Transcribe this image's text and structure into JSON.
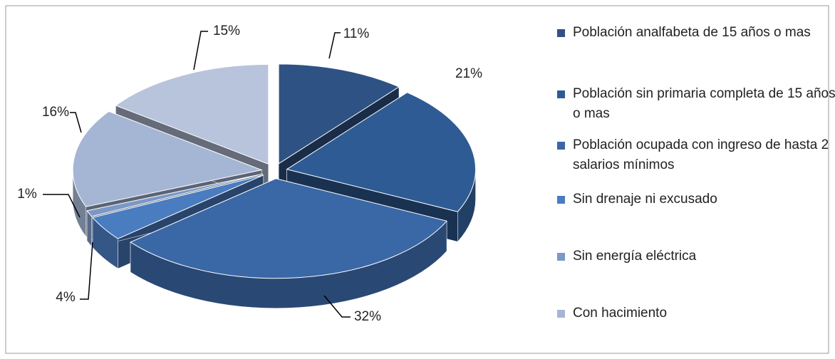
{
  "chart_data": {
    "type": "pie3d",
    "categories": [
      "Población analfabeta de 15 años o mas",
      "Población sin primaria completa de 15 años o mas",
      "Población ocupada con ingreso de hasta 2 salarios mínimos",
      "Sin drenaje ni excusado",
      "Sin energía eléctrica",
      "Con hacimiento",
      null
    ],
    "values": [
      11,
      21,
      32,
      4,
      1,
      16,
      15
    ],
    "value_labels": [
      "11%",
      "21%",
      "32%",
      "4%",
      "1%",
      "16%",
      "15%"
    ],
    "colors": [
      "#2e5283",
      "#2f5b95",
      "#3a67a6",
      "#4a7cc0",
      "#7c98c6",
      "#a5b5d4",
      "#b8c3dc"
    ],
    "legend": "right"
  }
}
